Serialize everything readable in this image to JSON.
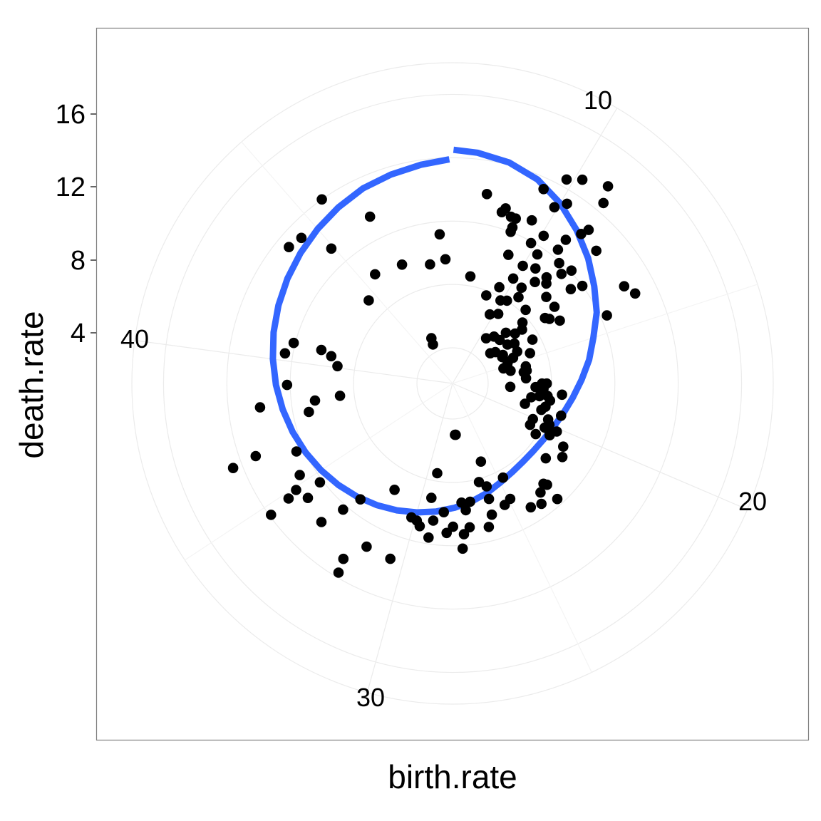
{
  "chart_data": {
    "type": "scatter",
    "coord": "polar",
    "xlabel": "birth.rate",
    "ylabel": "death.rate",
    "theta_ticks": [
      "10",
      "20",
      "30",
      "40"
    ],
    "r_ticks": [
      "4",
      "8",
      "12",
      "16"
    ],
    "r_tick_values": [
      4,
      8,
      12,
      16
    ],
    "theta_range": [
      6.25,
      50
    ],
    "r_range": [
      0,
      18
    ],
    "grid": true,
    "colors": {
      "points": "#000000",
      "smooth": "#3366FF",
      "panel_border": "#7f7f7f",
      "grid": "#ebebeb"
    },
    "points": [
      [
        10.2,
        13.0
      ],
      [
        10.9,
        13.6
      ],
      [
        11.1,
        12.6
      ],
      [
        9.8,
        12.5
      ],
      [
        9.3,
        11.3
      ],
      [
        11.3,
        10.7
      ],
      [
        10.2,
        11.2
      ],
      [
        9.9,
        10.6
      ],
      [
        11.2,
        10.2
      ],
      [
        12.0,
        10.1
      ],
      [
        10.9,
        9.3
      ],
      [
        7.5,
        9.9
      ],
      [
        8.3,
        9.3
      ],
      [
        8.6,
        8.9
      ],
      [
        8.8,
        8.9
      ],
      [
        9.4,
        9.2
      ],
      [
        10.1,
        8.7
      ],
      [
        10.9,
        8.5
      ],
      [
        13.6,
        10.2
      ],
      [
        14.0,
        10.6
      ],
      [
        8.2,
        9.0
      ],
      [
        8.8,
        8.0
      ],
      [
        8.8,
        8.3
      ],
      [
        9.8,
        7.9
      ],
      [
        10.3,
        7.5
      ],
      [
        11.3,
        7.9
      ],
      [
        11.9,
        8.1
      ],
      [
        11.7,
        7.5
      ],
      [
        12.5,
        7.3
      ],
      [
        12.7,
        8.0
      ],
      [
        14.3,
        8.4
      ],
      [
        11.3,
        6.7
      ],
      [
        9.1,
        6.6
      ],
      [
        10.0,
        6.4
      ],
      [
        10.6,
        6.7
      ],
      [
        9.9,
        5.4
      ],
      [
        11.0,
        6.0
      ],
      [
        11.5,
        6.4
      ],
      [
        12.0,
        5.8
      ],
      [
        13.5,
        5.6
      ],
      [
        12.7,
        5.8
      ],
      [
        13.1,
        5.1
      ],
      [
        10.6,
        5.2
      ],
      [
        12.9,
        4.9
      ],
      [
        9.4,
        4.5
      ],
      [
        7.4,
        4.6
      ],
      [
        8.8,
        3.7
      ],
      [
        9.9,
        3.8
      ],
      [
        10.3,
        4.0
      ],
      [
        10.8,
        4.6
      ],
      [
        11.7,
        4.3
      ],
      [
        13.7,
        3.5
      ],
      [
        12.2,
        3.6
      ],
      [
        12.6,
        3.3
      ],
      [
        9.7,
        2.7
      ],
      [
        10.3,
        3.0
      ],
      [
        11.9,
        2.4
      ],
      [
        12.5,
        2.8
      ],
      [
        12.0,
        1.8
      ],
      [
        13.2,
        2.4
      ],
      [
        11.3,
        1.7
      ],
      [
        12.9,
        2.0
      ],
      [
        10.7,
        1.3
      ],
      [
        14.0,
        2.3
      ],
      [
        14.6,
        3.0
      ],
      [
        12.8,
        1.1
      ],
      [
        13.6,
        1.4
      ],
      [
        14.4,
        1.9
      ],
      [
        12.5,
        0.8
      ],
      [
        13.8,
        1.3
      ],
      [
        17.2,
        3.4
      ],
      [
        16.7,
        2.4
      ],
      [
        14.6,
        1.5
      ],
      [
        15.7,
        1.5
      ],
      [
        16.1,
        2.3
      ],
      [
        16.0,
        2.5
      ],
      [
        17.5,
        3.0
      ],
      [
        17.2,
        3.7
      ],
      [
        18.1,
        3.8
      ],
      [
        14.9,
        1.4
      ],
      [
        15.2,
        1.1
      ],
      [
        15.6,
        2.5
      ],
      [
        18.4,
        4.0
      ],
      [
        19.2,
        4.9
      ],
      [
        17.9,
        4.7
      ],
      [
        18.4,
        2.8
      ],
      [
        17.6,
        1.4
      ],
      [
        19.1,
        2.5
      ],
      [
        17.6,
        3.5
      ],
      [
        18.2,
        3.3
      ],
      [
        18.9,
        3.8
      ],
      [
        19.2,
        3.6
      ],
      [
        20.6,
        4.7
      ],
      [
        20.0,
        4.4
      ],
      [
        20.3,
        4.4
      ],
      [
        20.3,
        4.2
      ],
      [
        20.1,
        3.3
      ],
      [
        21.9,
        5.3
      ],
      [
        22.9,
        6.5
      ],
      [
        20.2,
        5.0
      ],
      [
        19.7,
        4.2
      ],
      [
        20.6,
        3.3
      ],
      [
        21.0,
        3.9
      ],
      [
        20.8,
        5.8
      ],
      [
        21.3,
        6.1
      ],
      [
        23.4,
        6.6
      ],
      [
        23.0,
        6.3
      ],
      [
        23.7,
        7.2
      ],
      [
        23.0,
        7.6
      ],
      [
        24.2,
        7.0
      ],
      [
        24.9,
        5.9
      ],
      [
        26.0,
        5.4
      ],
      [
        25.3,
        6.1
      ],
      [
        24.7,
        4.5
      ],
      [
        25.7,
        3.0
      ],
      [
        26.3,
        4.2
      ],
      [
        27.1,
        5.3
      ],
      [
        25.9,
        4.6
      ],
      [
        26.4,
        7.1
      ],
      [
        27.3,
        6.9
      ],
      [
        27.4,
        5.8
      ],
      [
        26.1,
        6.4
      ],
      [
        28.1,
        6.8
      ],
      [
        27.6,
        7.3
      ],
      [
        27.7,
        8.2
      ],
      [
        29.2,
        7.6
      ],
      [
        28.4,
        7.2
      ],
      [
        28.6,
        5.9
      ],
      [
        29.1,
        6.5
      ],
      [
        29.7,
        7.0
      ],
      [
        29.9,
        6.7
      ],
      [
        29.4,
        5.1
      ],
      [
        31.5,
        9.4
      ],
      [
        30.5,
        9.5
      ],
      [
        32.0,
        10.8
      ],
      [
        31.9,
        11.7
      ],
      [
        27.6,
        5.3
      ],
      [
        27.8,
        1.0
      ],
      [
        27.7,
        1.0
      ],
      [
        29.3,
        3.5
      ],
      [
        31.6,
        5.4
      ],
      [
        30.2,
        6.6
      ],
      [
        32.8,
        7.1
      ],
      [
        33.1,
        8.3
      ],
      [
        33.4,
        9.8
      ],
      [
        34.7,
        11.9
      ],
      [
        36.5,
        12.6
      ],
      [
        35.3,
        9.0
      ],
      [
        34.4,
        9.4
      ],
      [
        34.9,
        9.7
      ],
      [
        34.8,
        10.4
      ],
      [
        36.6,
        11.0
      ],
      [
        34.6,
        8.2
      ],
      [
        36.2,
        8.5
      ],
      [
        38.2,
        10.0
      ],
      [
        39.0,
        8.2
      ],
      [
        40.8,
        8.1
      ],
      [
        40.3,
        8.5
      ],
      [
        38.2,
        6.5
      ],
      [
        37.7,
        7.0
      ],
      [
        38.3,
        4.9
      ],
      [
        40.8,
        6.3
      ],
      [
        40.6,
        5.6
      ],
      [
        40.1,
        5.1
      ],
      [
        44.9,
        9.2
      ],
      [
        43.9,
        11.2
      ],
      [
        44.4,
        11.0
      ],
      [
        45.7,
        12.0
      ],
      [
        46.8,
        9.5
      ],
      [
        48.7,
        5.4
      ],
      [
        45.7,
        6.2
      ],
      [
        44.5,
        5.2
      ],
      [
        47.2,
        5.9
      ],
      [
        49.4,
        7.2
      ],
      [
        49.6,
        5.6
      ],
      [
        3.2,
        0.9
      ],
      [
        3.0,
        0.5
      ]
    ],
    "smooth": [
      [
        6.28,
        12.5
      ],
      [
        7,
        12.4
      ],
      [
        8,
        12.15
      ],
      [
        9,
        11.7
      ],
      [
        10,
        11.0
      ],
      [
        11,
        10.2
      ],
      [
        12,
        9.4
      ],
      [
        13,
        8.6
      ],
      [
        14,
        7.9
      ],
      [
        15,
        7.1
      ],
      [
        16,
        6.5
      ],
      [
        17,
        5.9
      ],
      [
        18,
        5.4
      ],
      [
        19,
        5.0
      ],
      [
        20,
        4.7
      ],
      [
        21,
        4.5
      ],
      [
        22,
        4.4
      ],
      [
        23,
        4.4
      ],
      [
        24,
        4.5
      ],
      [
        25,
        4.7
      ],
      [
        26,
        5.0
      ],
      [
        27,
        5.3
      ],
      [
        28,
        5.6
      ],
      [
        29,
        5.9
      ],
      [
        30,
        6.2
      ],
      [
        31,
        6.5
      ],
      [
        32,
        6.8
      ],
      [
        33,
        7.1
      ],
      [
        34,
        7.4
      ],
      [
        35,
        7.7
      ],
      [
        36,
        8.0
      ],
      [
        37,
        8.3
      ],
      [
        38,
        8.6
      ],
      [
        39,
        8.9
      ],
      [
        40,
        9.2
      ],
      [
        41,
        9.5
      ],
      [
        42,
        9.8
      ],
      [
        43,
        10.1
      ],
      [
        44,
        10.4
      ],
      [
        45,
        10.7
      ],
      [
        46,
        11.0
      ],
      [
        47,
        11.3
      ],
      [
        48,
        11.5
      ],
      [
        49,
        11.7
      ],
      [
        49.9,
        11.9
      ]
    ]
  }
}
